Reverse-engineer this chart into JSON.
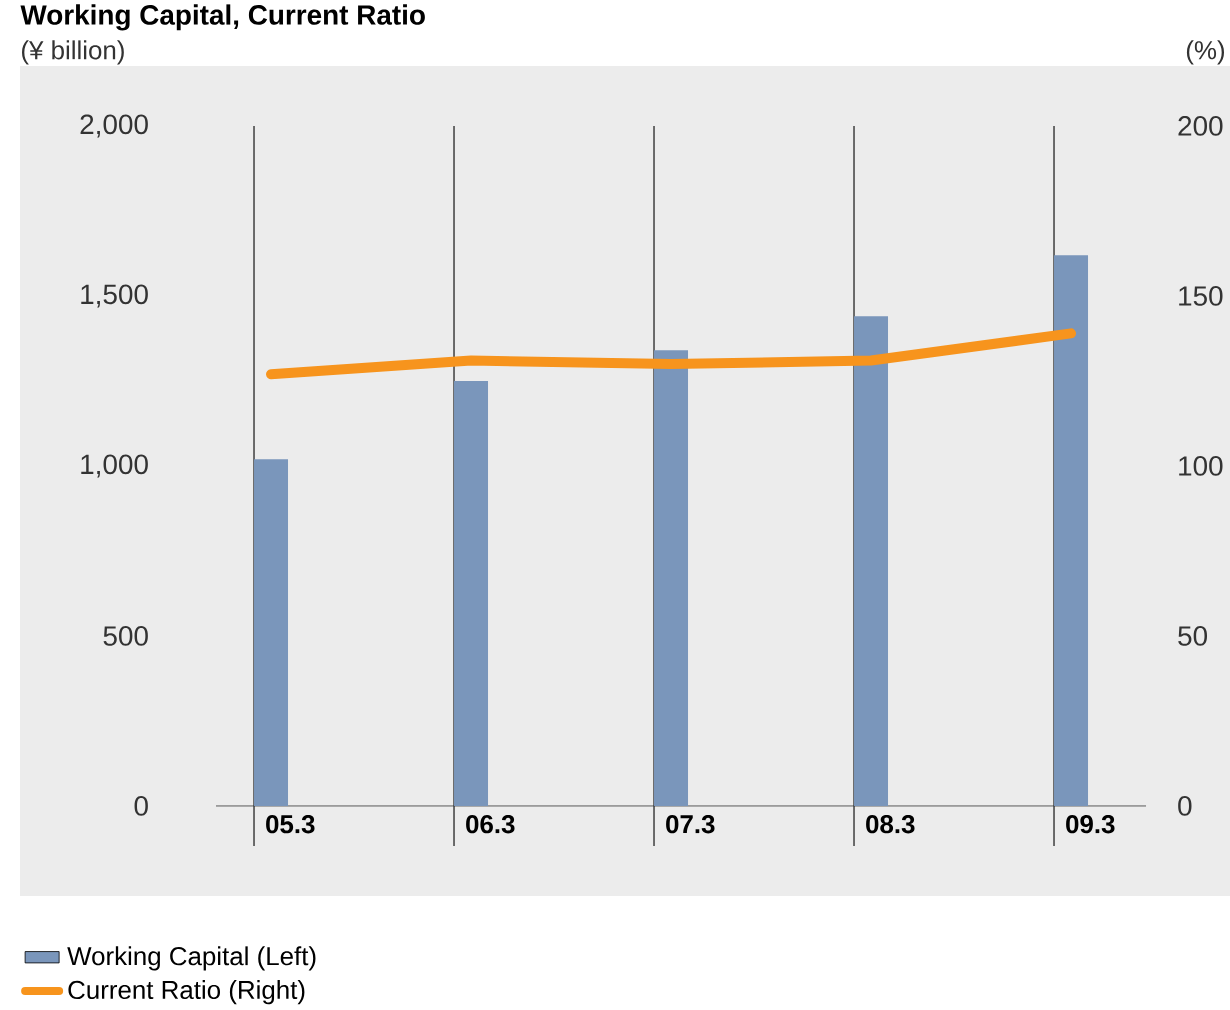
{
  "chart_data": {
    "type": "bar",
    "title": "Working Capital, Current Ratio",
    "ylabel": "(¥ billion)",
    "y2label": "(%)",
    "categories": [
      "05.3",
      "06.3",
      "07.3",
      "08.3",
      "09.3"
    ],
    "series": [
      {
        "name": "Working Capital (Left)",
        "color": "#7a96bb",
        "values": [
          1020,
          1250,
          1340,
          1440,
          1620
        ]
      },
      {
        "name": "Current Ratio (Right)",
        "type": "line",
        "axis": "y2",
        "color": "#f7941d",
        "values": [
          127,
          131,
          130,
          131,
          139
        ]
      }
    ],
    "ylim": [
      0,
      2000
    ],
    "yticks": [
      0,
      500,
      {
        "value": 1000,
        "label": "1,000"
      },
      {
        "value": 1500,
        "label": "1,500"
      },
      {
        "value": 2000,
        "label": "2,000"
      }
    ],
    "y2lim": [
      0,
      200
    ],
    "y2ticks": [
      0,
      50,
      100,
      150,
      200
    ],
    "grid": "x",
    "legend": "bottom"
  }
}
